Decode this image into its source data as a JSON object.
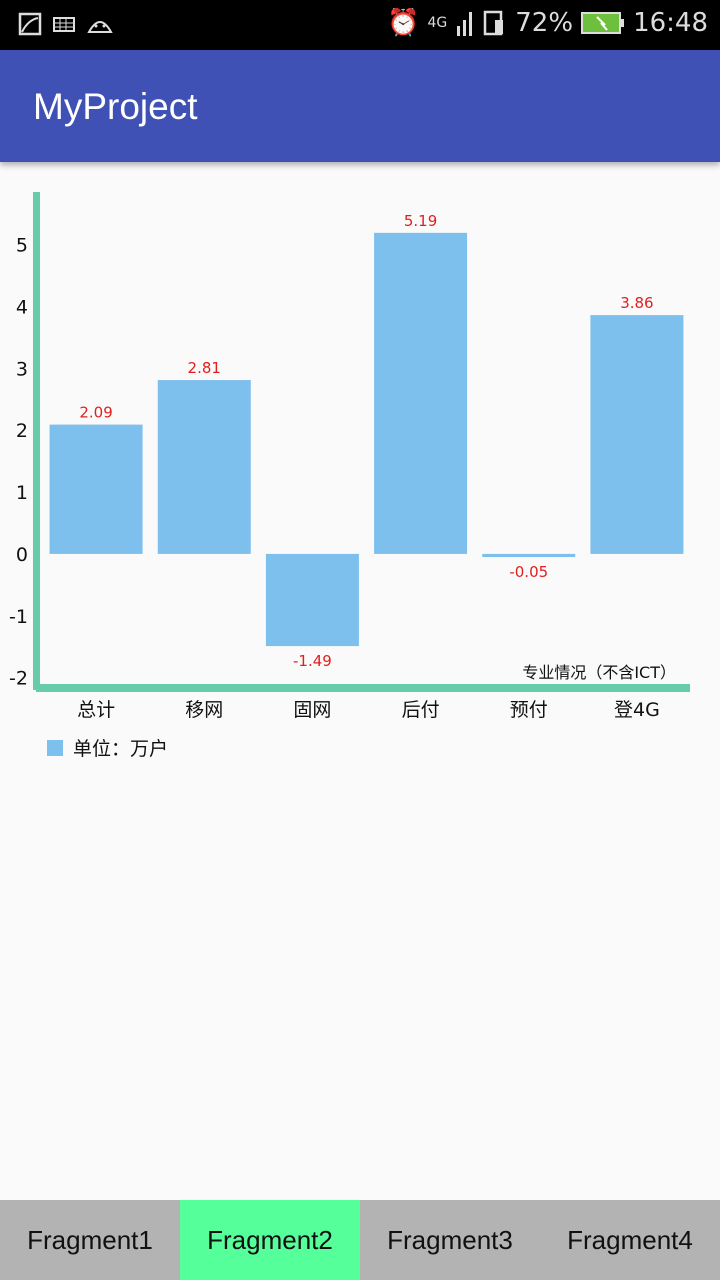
{
  "status_bar": {
    "icons_left": [
      "image-icon",
      "keyboard-icon",
      "android-icon"
    ],
    "icons_right": [
      "alarm-icon",
      "signal-4g-icon",
      "sim-alert-icon"
    ],
    "battery": "72%",
    "time": "16:48",
    "network": "4G"
  },
  "app_bar": {
    "title": "MyProject",
    "color": "#3f51b5"
  },
  "chart_data": {
    "type": "bar",
    "categories": [
      "总计",
      "移网",
      "固网",
      "后付",
      "预付",
      "登4G"
    ],
    "values": [
      2.09,
      2.81,
      -1.49,
      5.19,
      -0.05,
      3.86
    ],
    "data_labels": [
      "2.09",
      "2.81",
      "-1.49",
      "5.19",
      "-0.05",
      "3.86"
    ],
    "yticks": [
      "5",
      "4",
      "3",
      "2",
      "1",
      "0",
      "-1",
      "-2"
    ],
    "ylim": [
      -2.2,
      5.85
    ],
    "description_label": "专业情况（不含ICT）",
    "legend": {
      "label": "单位：万户",
      "placement": "bottom-left"
    },
    "bar_color": "#7dbfed",
    "label_color": "#e0201e",
    "axis_color": "#66ccaa",
    "grid": false
  },
  "tabs": [
    {
      "label": "Fragment1"
    },
    {
      "label": "Fragment2",
      "selected": true
    },
    {
      "label": "Fragment3"
    },
    {
      "label": "Fragment4"
    }
  ],
  "tab_selected_color": "#55ff99"
}
